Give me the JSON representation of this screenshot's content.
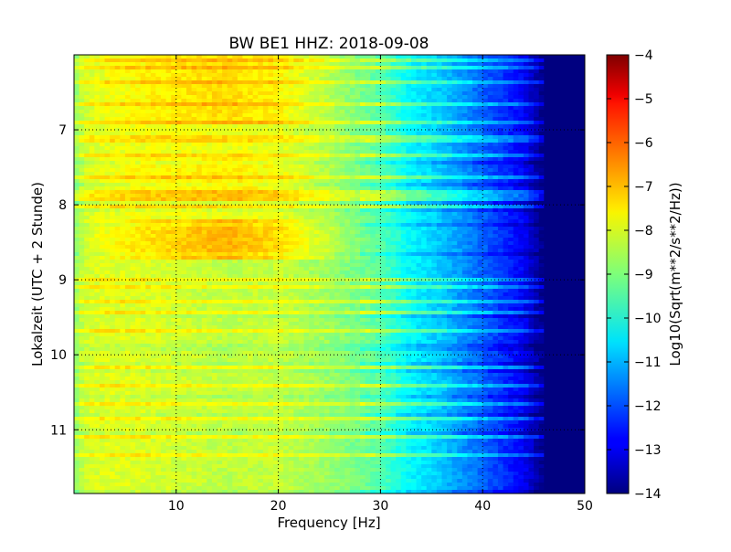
{
  "chart_data": {
    "type": "heatmap",
    "title": "BW BE1 HHZ: 2018-09-08",
    "xlabel": "Frequency [Hz]",
    "ylabel": "Lokalzeit (UTC + 2 Stunde)",
    "xlim": [
      0,
      50
    ],
    "ylim": [
      6.0,
      11.85
    ],
    "y_inverted": true,
    "x_ticks": [
      10,
      20,
      30,
      40,
      50
    ],
    "y_ticks": [
      7,
      8,
      9,
      10,
      11
    ],
    "grid": true,
    "colormap": "jet",
    "colorbar": {
      "label": "Log10(Sqrt(m**2/s**2/Hz))",
      "min": -14,
      "max": -4,
      "ticks": [
        -4,
        -5,
        -6,
        -7,
        -8,
        -9,
        -10,
        -11,
        -12,
        -13,
        -14
      ]
    },
    "spectral_profile": {
      "frequency_hz": [
        0,
        1,
        3,
        6,
        10,
        15,
        20,
        25,
        30,
        33,
        36,
        40,
        44,
        46,
        50
      ],
      "log10_amplitude": [
        -8.9,
        -8.2,
        -8.0,
        -7.9,
        -7.9,
        -7.9,
        -8.0,
        -8.6,
        -9.4,
        -10.3,
        -10.8,
        -11.8,
        -12.8,
        -14.0,
        -14.0
      ]
    },
    "elevated_intervals": [
      {
        "start": 6.0,
        "end": 6.95,
        "delta": 0.5
      },
      {
        "start": 7.35,
        "end": 7.95,
        "delta": 0.3
      },
      {
        "start": 8.2,
        "end": 8.75,
        "delta": 0.9
      }
    ],
    "quiet_interval": {
      "start": 8.75,
      "end": 11.85,
      "delta": -0.5
    }
  }
}
